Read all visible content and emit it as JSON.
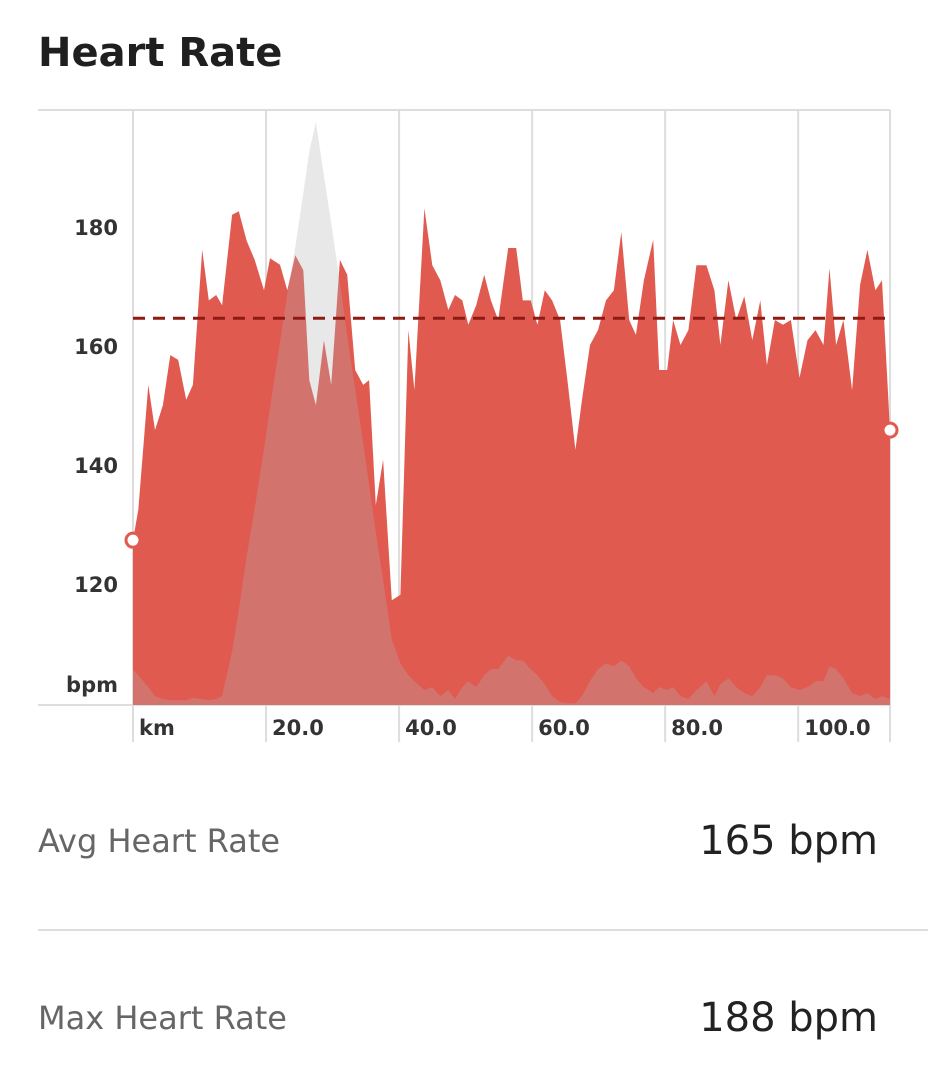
{
  "header": {
    "title": "Heart Rate"
  },
  "chart_data": {
    "type": "area",
    "x": [
      0,
      0.8,
      2.3,
      3.3,
      4.5,
      5.6,
      6.8,
      8,
      9,
      10.4,
      11.4,
      12.5,
      13.4,
      14.9,
      15.9,
      17.1,
      18.3,
      19.7,
      20.6,
      22.1,
      23.2,
      24.4,
      25.6,
      26.5,
      27.5,
      28.7,
      29.8,
      31.1,
      32.2,
      33.4,
      34.6,
      35.5,
      36.5,
      37.6,
      38.9,
      40.2,
      41.4,
      42.3,
      43.8,
      45,
      46.2,
      47.4,
      48.4,
      49.5,
      50.4,
      51.6,
      52.8,
      53.8,
      54.9,
      56.4,
      57.6,
      58.6,
      59.8,
      60.8,
      61.9,
      63,
      64.2,
      65.3,
      66.5,
      67.5,
      68.7,
      69.9,
      71.1,
      72.3,
      73.4,
      74.6,
      75.6,
      76.8,
      78.2,
      79.1,
      80.3,
      81.2,
      82.3,
      83.5,
      84.7,
      86.2,
      87.4,
      88.3,
      89.5,
      90.7,
      91.9,
      93.1,
      94.3,
      95.3,
      96.5,
      97.7,
      98.9,
      100.2,
      101.4,
      102.6,
      103.8,
      104.7,
      105.7,
      106.8,
      108.1,
      109.3,
      110.4,
      111.6,
      112.6,
      113.8
    ],
    "series": [
      {
        "color": "#e05a50",
        "values": [
          127.7,
          132.8,
          153.8,
          146.2,
          150.4,
          158.8,
          158,
          151.3,
          153.8,
          176.5,
          168,
          168.9,
          167.2,
          182.4,
          183,
          178,
          174.8,
          169.7,
          175.1,
          174,
          169.7,
          175.6,
          173.1,
          154.6,
          150.4,
          161.3,
          153.8,
          174.8,
          172.3,
          156.3,
          153.8,
          154.6,
          133.6,
          141.2,
          117.6,
          118.5,
          163,
          152.9,
          183.5,
          173.9,
          171.4,
          166.4,
          168.9,
          168,
          163.9,
          167.2,
          172.3,
          168,
          164.7,
          176.8,
          176.8,
          168,
          168,
          163.9,
          169.7,
          168,
          164.7,
          154.6,
          142.9,
          151.3,
          160.5,
          163,
          168,
          169.7,
          179.5,
          164.7,
          162.2,
          171.4,
          178.2,
          156.3,
          156.3,
          164.7,
          160.5,
          163,
          173.9,
          173.9,
          169.7,
          160.5,
          171.4,
          164.7,
          168.7,
          161.3,
          168,
          157.1,
          164.7,
          163.9,
          164.7,
          155,
          161.3,
          163,
          160.5,
          173.4,
          160.5,
          164.7,
          152.9,
          170.6,
          176.5,
          169.7,
          171.4,
          146.2
        ]
      },
      {
        "color": "#b4b4b4",
        "values": [
          105.9,
          105,
          103,
          101.5,
          101,
          100.8,
          100.8,
          100.8,
          101.2,
          101,
          100.8,
          101,
          101.5,
          109,
          116,
          125,
          133,
          143,
          150,
          161,
          169,
          177,
          186,
          193,
          198,
          189,
          181,
          171,
          162,
          153,
          144,
          137,
          129,
          121,
          111,
          107,
          105,
          104,
          102.5,
          103,
          101.5,
          102.5,
          101,
          103,
          104,
          103,
          105,
          106,
          106,
          108.3,
          107.5,
          107.5,
          106,
          105,
          103.5,
          101.5,
          100.5,
          100.3,
          100.3,
          101.5,
          104,
          106,
          107,
          106.5,
          107.5,
          106.5,
          104.5,
          103,
          102,
          103,
          102.5,
          103,
          101.5,
          101,
          102.5,
          104,
          101.5,
          103.5,
          104.5,
          103,
          102,
          101.5,
          103,
          105,
          105,
          104.5,
          103,
          102.5,
          103,
          104,
          104,
          106.5,
          106,
          104.5,
          102,
          101.5,
          102,
          101,
          101.5,
          101
        ]
      }
    ],
    "average": 165,
    "average_color": "#8e1a14",
    "xlim": [
      0,
      113.8
    ],
    "ylim": [
      100,
      200
    ],
    "xticks": [
      {
        "value": 0,
        "label": "km"
      },
      {
        "value": 20,
        "label": "20.0"
      },
      {
        "value": 40,
        "label": "40.0"
      },
      {
        "value": 60,
        "label": "60.0"
      },
      {
        "value": 80,
        "label": "80.0"
      },
      {
        "value": 100,
        "label": "100.0"
      }
    ],
    "yticks": [
      120,
      140,
      160,
      180
    ],
    "y_label": "bpm",
    "grid": true
  },
  "stats": [
    {
      "label": "Avg Heart Rate",
      "value": "165 bpm"
    },
    {
      "label": "Max Heart Rate",
      "value": "188 bpm"
    }
  ]
}
